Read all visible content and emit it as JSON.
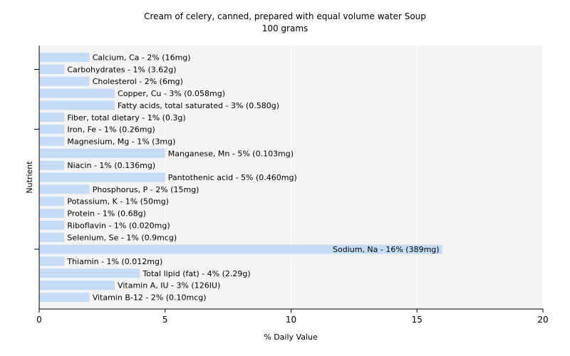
{
  "chart_data": {
    "type": "bar",
    "orientation": "horizontal",
    "title": "Cream of celery, canned, prepared with equal volume water Soup",
    "subtitle": "100 grams",
    "xlabel": "% Daily Value",
    "ylabel": "Nutrient",
    "xlim": [
      0,
      20
    ],
    "xticks": [
      0,
      5,
      10,
      15,
      20
    ],
    "grid": true,
    "bar_color": "#c6dcf6",
    "categories": [
      "Calcium, Ca - 2% (16mg)",
      "Carbohydrates - 1% (3.62g)",
      "Cholesterol - 2% (6mg)",
      "Copper, Cu - 3% (0.058mg)",
      "Fatty acids, total saturated - 3% (0.580g)",
      "Fiber, total dietary - 1% (0.3g)",
      "Iron, Fe - 1% (0.26mg)",
      "Magnesium, Mg - 1% (3mg)",
      "Manganese, Mn - 5% (0.103mg)",
      "Niacin - 1% (0.136mg)",
      "Pantothenic acid - 5% (0.460mg)",
      "Phosphorus, P - 2% (15mg)",
      "Potassium, K - 1% (50mg)",
      "Protein - 1% (0.68g)",
      "Riboflavin - 1% (0.020mg)",
      "Selenium, Se - 1% (0.9mcg)",
      "Sodium, Na - 16% (389mg)",
      "Thiamin - 1% (0.012mg)",
      "Total lipid (fat) - 4% (2.29g)",
      "Vitamin A, IU - 3% (126IU)",
      "Vitamin B-12 - 2% (0.10mcg)"
    ],
    "values": [
      2,
      1,
      2,
      3,
      3,
      1,
      1,
      1,
      5,
      1,
      5,
      2,
      1,
      1,
      1,
      1,
      16,
      1,
      4,
      3,
      2
    ]
  }
}
